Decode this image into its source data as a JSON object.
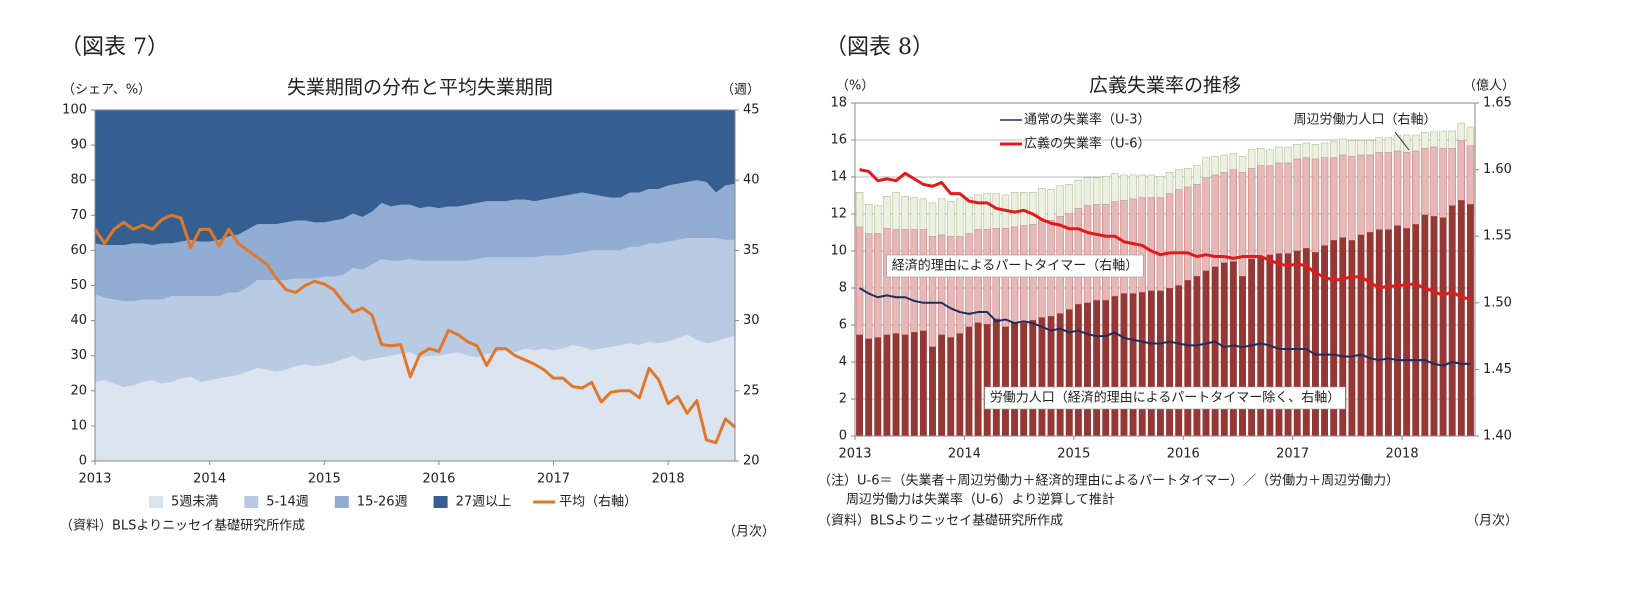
{
  "chart_data": [
    {
      "type": "area",
      "header": "（図表 7）",
      "title": "失業期間の分布と平均失業期間",
      "y_label": "（シェア、%）",
      "y2_label": "（週）",
      "source": "（資料）BLSよりニッセイ基礎研究所作成",
      "x_unit": "（月次）",
      "categories": [
        "2013",
        null,
        null,
        null,
        null,
        null,
        null,
        null,
        null,
        null,
        null,
        null,
        "2014",
        null,
        null,
        null,
        null,
        null,
        null,
        null,
        null,
        null,
        null,
        null,
        "2015",
        null,
        null,
        null,
        null,
        null,
        null,
        null,
        null,
        null,
        null,
        null,
        "2016",
        null,
        null,
        null,
        null,
        null,
        null,
        null,
        null,
        null,
        null,
        null,
        "2017",
        null,
        null,
        null,
        null,
        null,
        null,
        null,
        null,
        null,
        null,
        null,
        "2018",
        null,
        null,
        null,
        null,
        null,
        null,
        null
      ],
      "ylim": [
        0,
        100
      ],
      "yticks": [
        0,
        10,
        20,
        30,
        40,
        50,
        60,
        70,
        80,
        90,
        100
      ],
      "y2lim": [
        20,
        45
      ],
      "y2ticks": [
        20,
        25,
        30,
        35,
        40,
        45
      ],
      "grid": false,
      "legend": "bottom",
      "series": [
        {
          "name": "5週未満",
          "color": "#dce4f0",
          "values": [
            22.5,
            23,
            22,
            21,
            21.5,
            22.5,
            23,
            22,
            22.5,
            23.5,
            24,
            22.5,
            23,
            23.5,
            24,
            24.5,
            25.5,
            26.5,
            26,
            25.5,
            26,
            27,
            27.5,
            27,
            27.5,
            28,
            29,
            30,
            28.5,
            29,
            29.5,
            30,
            30.5,
            31,
            29.5,
            30,
            30,
            30.5,
            31,
            30,
            29.5,
            30.5,
            31,
            31.5,
            31,
            32,
            31.5,
            32,
            31.5,
            32,
            33,
            32.5,
            31.5,
            32,
            32.5,
            33,
            33.5,
            33,
            34,
            33.5,
            34,
            35,
            36,
            34.5,
            33.5,
            34,
            35,
            35.5
          ]
        },
        {
          "name": "5-14週",
          "color": "#b9cbe3",
          "values": [
            25,
            23.5,
            24,
            24.5,
            24,
            23.5,
            23,
            24,
            24.5,
            23.5,
            23,
            24.5,
            24,
            23.5,
            24,
            23.5,
            24,
            25,
            25.5,
            26,
            25.5,
            25,
            24.5,
            25,
            25,
            24.5,
            24,
            25,
            26,
            27,
            28,
            27,
            26.5,
            26.5,
            27.5,
            27,
            27,
            26.5,
            26,
            27,
            28,
            27.5,
            27,
            26.5,
            27,
            26,
            26.5,
            26.5,
            27,
            26.5,
            26,
            27,
            28.5,
            28,
            27.5,
            27,
            27.5,
            28,
            28,
            28.5,
            28.5,
            28,
            27.5,
            29,
            30,
            29.5,
            28,
            27.5
          ]
        },
        {
          "name": "15-26週",
          "color": "#91add4",
          "values": [
            14.5,
            15,
            15.5,
            16,
            16.5,
            16,
            15.5,
            16,
            15,
            15.5,
            16,
            15.5,
            15.5,
            16,
            16,
            16.5,
            16.5,
            16,
            16,
            16,
            16.5,
            16.5,
            16.5,
            16,
            15.5,
            16,
            16,
            15.5,
            15,
            15,
            16,
            15.5,
            16,
            15.5,
            15,
            15.5,
            15,
            15.5,
            15.5,
            16,
            16,
            16,
            16,
            16,
            16.5,
            16.5,
            16,
            16,
            16.5,
            17,
            17,
            17,
            16,
            15.5,
            15,
            15,
            15.5,
            15.5,
            15.5,
            15.5,
            16,
            16,
            16,
            16.5,
            16,
            13,
            15.5,
            16
          ]
        },
        {
          "name": "27週以上",
          "color": "#365f91",
          "values": [
            38,
            38.5,
            38.5,
            38.5,
            38,
            38,
            38.5,
            38,
            38,
            37.5,
            37,
            37.5,
            37.5,
            37,
            36,
            35.5,
            34,
            32.5,
            32.5,
            32.5,
            32,
            31.5,
            31.5,
            32,
            32,
            31.5,
            31,
            29.5,
            30.5,
            29,
            26.5,
            27.5,
            27,
            27,
            28,
            27.5,
            28,
            27.5,
            27.5,
            27,
            26.5,
            26,
            26,
            26,
            25.5,
            25.5,
            26,
            25.5,
            25,
            24.5,
            24,
            23.5,
            24,
            24.5,
            25,
            25,
            23.5,
            23.5,
            22.5,
            22.5,
            21.5,
            21,
            20.5,
            20,
            20.5,
            23.5,
            21.5,
            21
          ]
        },
        {
          "name": "平均（右軸）",
          "type": "line",
          "axis": "y2",
          "color": "#e0782c",
          "values": [
            36.5,
            35.5,
            36.5,
            37,
            36.5,
            36.8,
            36.5,
            37.2,
            37.5,
            37.3,
            35.2,
            36.5,
            36.5,
            35.3,
            36.5,
            35.5,
            35,
            34.5,
            34,
            33,
            32.2,
            32,
            32.5,
            32.8,
            32.6,
            32.2,
            31.3,
            30.6,
            30.9,
            30.4,
            28.3,
            28.2,
            28.3,
            26,
            27.6,
            28,
            27.8,
            29.3,
            29,
            28.5,
            28.2,
            26.8,
            28,
            28,
            27.5,
            27.2,
            26.9,
            26.5,
            25.9,
            25.9,
            25.3,
            25.2,
            25.6,
            24.2,
            24.9,
            25,
            25,
            24.5,
            26.6,
            25.8,
            24.1,
            24.6,
            23.4,
            24.3,
            21.5,
            21.3,
            23,
            22.4
          ]
        }
      ]
    },
    {
      "type": "bar",
      "stacked": true,
      "header": "（図表 8）",
      "title": "広義失業率の推移",
      "y_label": "（%）",
      "y2_label": "（億人）",
      "notes": [
        "（注）U-6＝（失業者＋周辺労働力＋経済的理由によるパートタイマー）／（労働力＋周辺労働力）",
        "周辺労働力は失業率（U-6）より逆算して推計"
      ],
      "source": "（資料）BLSよりニッセイ基礎研究所作成",
      "x_unit": "（月次）",
      "categories": [
        "2013",
        null,
        null,
        null,
        null,
        null,
        null,
        null,
        null,
        null,
        null,
        null,
        "2014",
        null,
        null,
        null,
        null,
        null,
        null,
        null,
        null,
        null,
        null,
        null,
        "2015",
        null,
        null,
        null,
        null,
        null,
        null,
        null,
        null,
        null,
        null,
        null,
        "2016",
        null,
        null,
        null,
        null,
        null,
        null,
        null,
        null,
        null,
        null,
        null,
        "2017",
        null,
        null,
        null,
        null,
        null,
        null,
        null,
        null,
        null,
        null,
        null,
        "2018",
        null,
        null,
        null,
        null,
        null,
        null,
        null
      ],
      "ylim": [
        0,
        18
      ],
      "yticks": [
        0,
        2,
        4,
        6,
        8,
        10,
        12,
        14,
        16,
        18
      ],
      "y2lim": [
        1.4,
        1.65
      ],
      "y2ticks": [
        {
          "value": 1.4,
          "label": "1.40"
        },
        1.45,
        {
          "value": 1.5,
          "label": "1.50"
        },
        1.55,
        {
          "value": 1.6,
          "label": "1.60"
        },
        1.65
      ],
      "grid": true,
      "legend": "upper left",
      "series": [
        {
          "name": "労働力人口（経済的理由によるパートタイマー除く、右軸）",
          "axis": "y2",
          "color": "#953735",
          "values": [
            1.476,
            1.473,
            1.474,
            1.476,
            1.477,
            1.476,
            1.478,
            1.479,
            1.467,
            1.476,
            1.474,
            1.477,
            1.482,
            1.485,
            1.484,
            1.488,
            1.482,
            1.485,
            1.485,
            1.487,
            1.489,
            1.49,
            1.492,
            1.495,
            1.499,
            1.5,
            1.502,
            1.502,
            1.505,
            1.507,
            1.507,
            1.508,
            1.509,
            1.509,
            1.511,
            1.513,
            1.517,
            1.52,
            1.524,
            1.527,
            1.53,
            1.531,
            1.52,
            1.533,
            1.535,
            1.536,
            1.537,
            1.537,
            1.539,
            1.541,
            1.538,
            1.543,
            1.547,
            1.549,
            1.547,
            1.551,
            1.553,
            1.555,
            1.555,
            1.558,
            1.556,
            1.559,
            1.566,
            1.565,
            1.564,
            1.573,
            1.577,
            1.574
          ]
        },
        {
          "name": "経済的理由によるパートタイマー（右軸）",
          "axis": "y2",
          "color": "#e6b9b8",
          "values": [
            0.081,
            0.079,
            0.078,
            0.08,
            0.078,
            0.079,
            0.077,
            0.076,
            0.083,
            0.075,
            0.076,
            0.073,
            0.07,
            0.07,
            0.071,
            0.068,
            0.074,
            0.072,
            0.073,
            0.072,
            0.073,
            0.072,
            0.073,
            0.072,
            0.072,
            0.073,
            0.072,
            0.072,
            0.071,
            0.07,
            0.071,
            0.071,
            0.07,
            0.07,
            0.071,
            0.072,
            0.07,
            0.069,
            0.07,
            0.069,
            0.068,
            0.069,
            0.078,
            0.068,
            0.068,
            0.067,
            0.068,
            0.068,
            0.069,
            0.068,
            0.07,
            0.066,
            0.062,
            0.062,
            0.063,
            0.06,
            0.058,
            0.058,
            0.058,
            0.056,
            0.057,
            0.055,
            0.05,
            0.052,
            0.052,
            0.043,
            0.045,
            0.044
          ]
        },
        {
          "name": "周辺労働力人口（右軸）",
          "axis": "y2",
          "color": "#ebf1de",
          "values": [
            0.026,
            0.022,
            0.021,
            0.024,
            0.028,
            0.025,
            0.024,
            0.023,
            0.025,
            0.027,
            0.026,
            0.028,
            0.027,
            0.026,
            0.027,
            0.026,
            0.025,
            0.026,
            0.025,
            0.024,
            0.024,
            0.023,
            0.023,
            0.022,
            0.021,
            0.021,
            0.02,
            0.021,
            0.021,
            0.019,
            0.018,
            0.017,
            0.017,
            0.016,
            0.016,
            0.015,
            0.014,
            0.014,
            0.015,
            0.014,
            0.013,
            0.012,
            0.012,
            0.014,
            0.013,
            0.012,
            0.012,
            0.012,
            0.011,
            0.011,
            0.011,
            0.011,
            0.012,
            0.012,
            0.012,
            0.011,
            0.011,
            0.011,
            0.011,
            0.012,
            0.013,
            0.012,
            0.012,
            0.012,
            0.013,
            0.013,
            0.013,
            0.014
          ]
        },
        {
          "name": "通常の失業率（U-3）",
          "type": "line",
          "color": "#1f2d5a",
          "values": [
            8.0,
            7.7,
            7.5,
            7.6,
            7.5,
            7.5,
            7.3,
            7.2,
            7.2,
            7.2,
            6.9,
            6.7,
            6.6,
            6.7,
            6.7,
            6.2,
            6.3,
            6.1,
            6.2,
            6.1,
            5.9,
            5.7,
            5.8,
            5.6,
            5.7,
            5.5,
            5.4,
            5.4,
            5.6,
            5.3,
            5.2,
            5.1,
            5.0,
            5.0,
            5.1,
            5.0,
            4.9,
            4.9,
            5.0,
            5.1,
            4.8,
            4.9,
            4.8,
            4.9,
            5.0,
            4.9,
            4.7,
            4.7,
            4.7,
            4.7,
            4.4,
            4.4,
            4.4,
            4.3,
            4.3,
            4.4,
            4.2,
            4.1,
            4.2,
            4.1,
            4.1,
            4.1,
            4.1,
            3.9,
            3.8,
            4.0,
            3.9,
            3.9
          ]
        },
        {
          "name": "広義の失業率（U-6）",
          "type": "line",
          "color": "#e31a1c",
          "values": [
            14.4,
            14.3,
            13.8,
            13.9,
            13.8,
            14.2,
            13.9,
            13.6,
            13.5,
            13.7,
            13.1,
            13.1,
            12.7,
            12.6,
            12.6,
            12.3,
            12.2,
            12.1,
            12.2,
            12.0,
            11.7,
            11.5,
            11.4,
            11.2,
            11.2,
            11.0,
            10.9,
            10.8,
            10.8,
            10.5,
            10.4,
            10.3,
            10.0,
            9.8,
            9.9,
            9.9,
            9.9,
            9.7,
            9.8,
            9.7,
            9.7,
            9.6,
            9.7,
            9.7,
            9.7,
            9.5,
            9.3,
            9.2,
            9.3,
            9.2,
            8.8,
            8.6,
            8.4,
            8.5,
            8.6,
            8.6,
            8.3,
            8.0,
            8.1,
            8.1,
            8.2,
            8.2,
            8.0,
            7.8,
            7.6,
            7.8,
            7.5,
            7.4
          ]
        }
      ]
    }
  ]
}
